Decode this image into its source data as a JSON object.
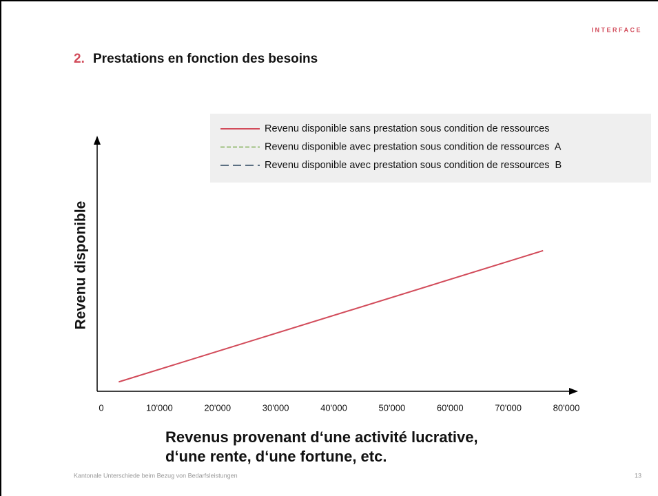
{
  "brand": "INTERFACE",
  "footer": {
    "text": "Kantonale Unterschiede beim Bezug von Bedarfsleistungen",
    "page": "13"
  },
  "chart_data": {
    "type": "line",
    "title_number": "2.",
    "title": "Prestations en fonction des besoins",
    "y_label": "Revenu disponible",
    "x_label": [
      "Revenus provenant d‘une activité lucrative,",
      "d‘une rente, d‘une fortune, etc."
    ],
    "x": [
      3000,
      76000
    ],
    "series": [
      {
        "name": "Revenu disponible sans prestation sous condition de ressources",
        "color": "#d24b5a",
        "dash": "solid",
        "values": [
          3000,
          45000
        ]
      },
      {
        "name": "Revenu disponible avec prestation sous condition de ressources  A",
        "color": "#9dbf7e",
        "dash": "dashed",
        "values": [
          null,
          null
        ]
      },
      {
        "name": "Revenu disponible avec prestation sous condition de ressources  B",
        "color": "#5b6f82",
        "dash": "longdash",
        "values": [
          null,
          null
        ]
      }
    ],
    "xlim": [
      0,
      80000
    ],
    "ylim": [
      0,
      80000
    ],
    "xticks": [
      0,
      {
        "value": 10000,
        "label": "10'000"
      },
      {
        "value": 20000,
        "label": "20'000"
      },
      {
        "value": 30000,
        "label": "30'000"
      },
      {
        "value": 40000,
        "label": "40'000"
      },
      {
        "value": 50000,
        "label": "50'000"
      },
      {
        "value": 60000,
        "label": "60'000"
      },
      {
        "value": 70000,
        "label": "70'000"
      },
      {
        "value": 80000,
        "label": "80'000"
      }
    ],
    "legend": "top-right",
    "grid": false
  }
}
